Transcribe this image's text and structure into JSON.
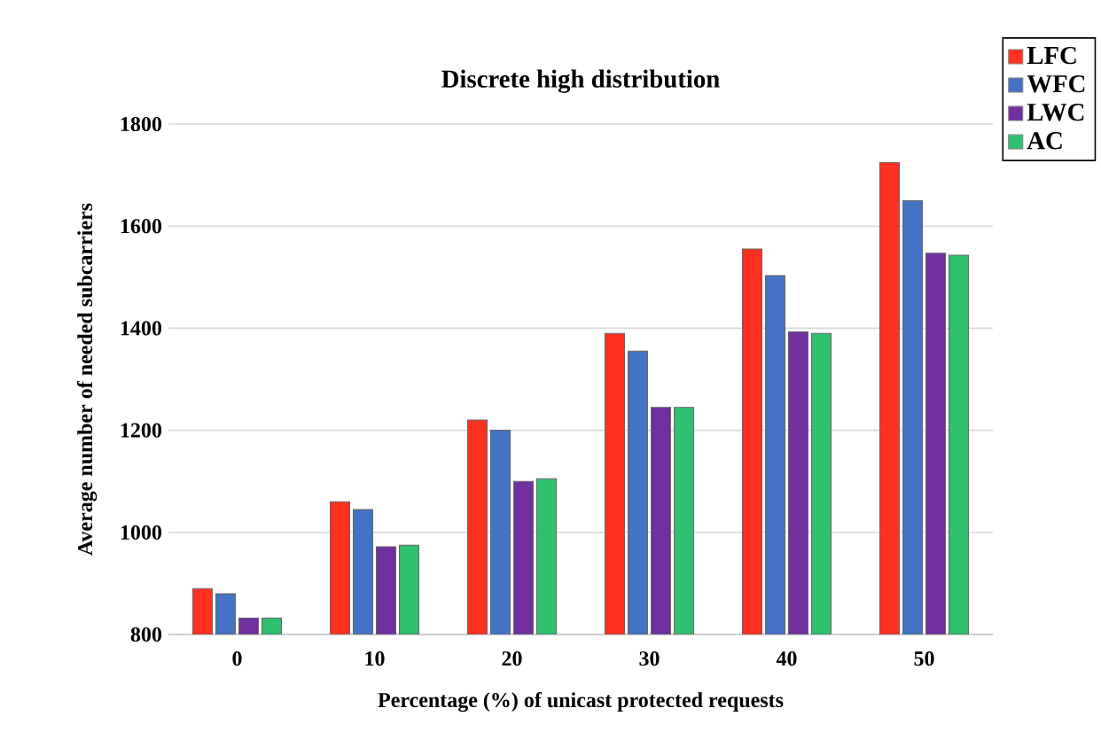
{
  "chart_data": {
    "type": "bar",
    "title": "Discrete high distribution",
    "xlabel": "Percentage (%) of unicast protected requests",
    "ylabel": "Average number of needed subcarriers",
    "categories": [
      "0",
      "10",
      "20",
      "30",
      "40",
      "50"
    ],
    "series": [
      {
        "name": "LFC",
        "color": "#ff3020",
        "values": [
          890,
          1060,
          1220,
          1390,
          1555,
          1725
        ]
      },
      {
        "name": "WFC",
        "color": "#4472c4",
        "values": [
          880,
          1045,
          1200,
          1355,
          1503,
          1650
        ]
      },
      {
        "name": "LWC",
        "color": "#7030a0",
        "values": [
          832,
          972,
          1100,
          1245,
          1393,
          1547
        ]
      },
      {
        "name": "AC",
        "color": "#30c070",
        "values": [
          832,
          975,
          1105,
          1245,
          1390,
          1543
        ]
      }
    ],
    "ylim": [
      800,
      1800
    ],
    "yticks": [
      800,
      1000,
      1200,
      1400,
      1600,
      1800
    ],
    "grid": "y",
    "legend": "top right"
  }
}
